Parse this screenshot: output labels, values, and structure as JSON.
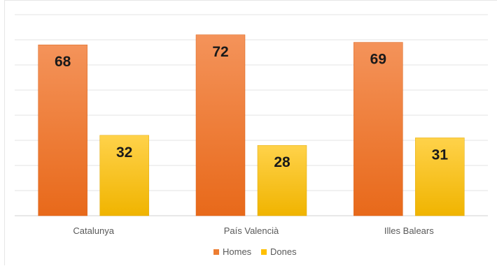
{
  "chart_data": {
    "type": "bar",
    "categories": [
      "Catalunya",
      "País Valencià",
      "Illes Balears"
    ],
    "series": [
      {
        "name": "Homes",
        "values": [
          68,
          72,
          69
        ],
        "color": "#ed7d31"
      },
      {
        "name": "Dones",
        "values": [
          32,
          28,
          31
        ],
        "color": "#ffc000"
      }
    ],
    "ylim": [
      0,
      80
    ],
    "grid": true,
    "legend_position": "bottom",
    "data_labels": true
  }
}
